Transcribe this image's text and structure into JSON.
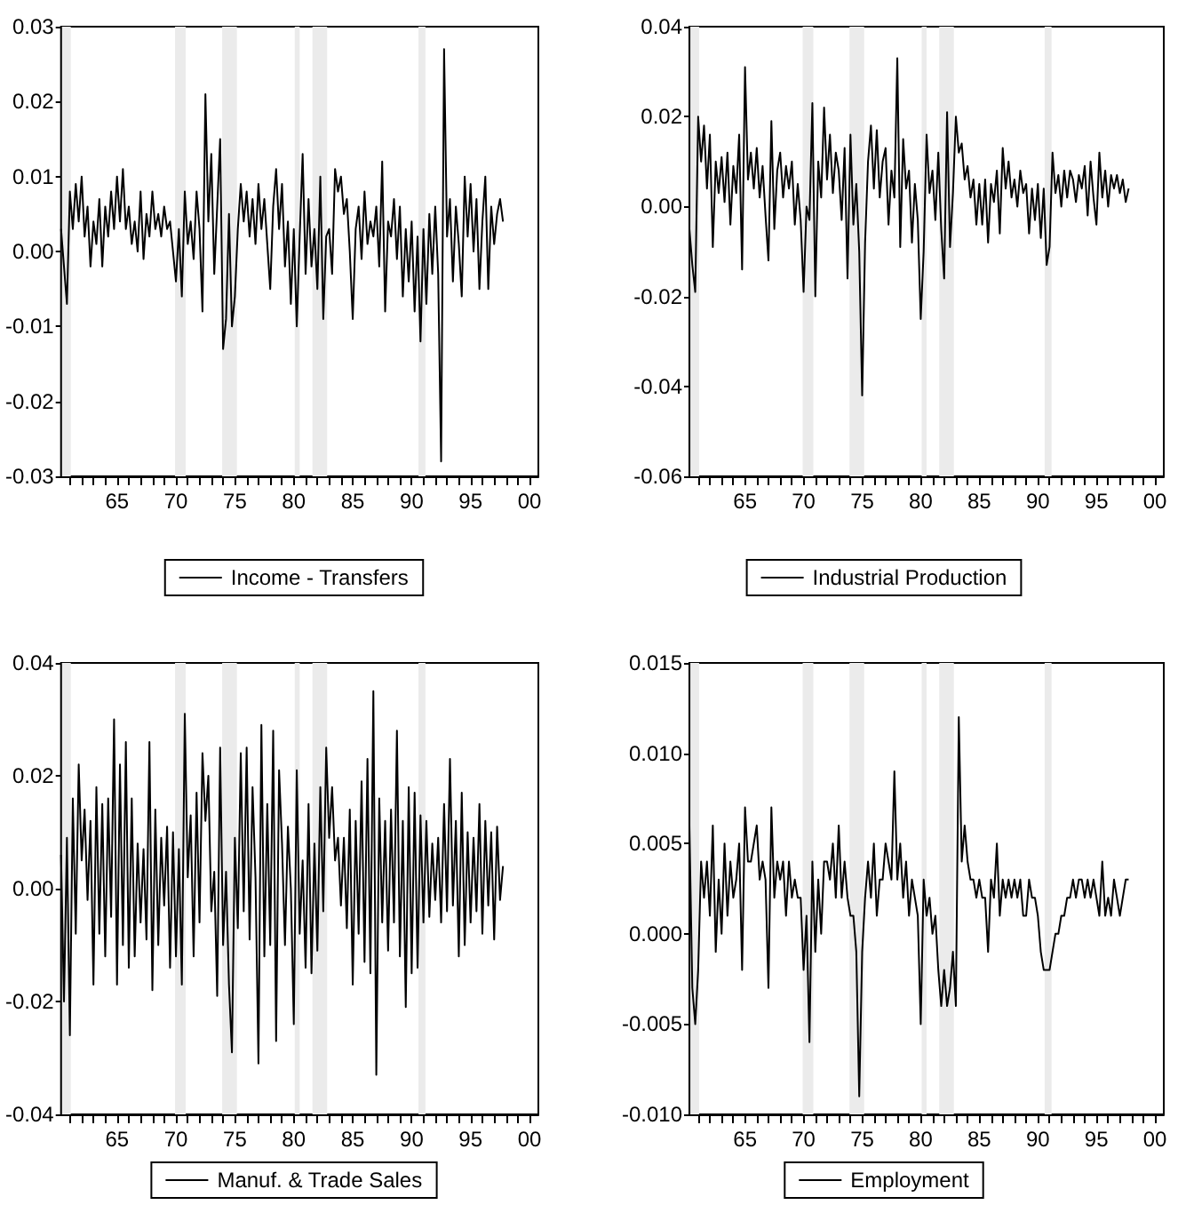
{
  "chart_data": [
    {
      "type": "line",
      "legend": "bottom",
      "xlim": [
        1960.25,
        2000.75
      ],
      "xticks": [
        {
          "value": 1961,
          "label": null
        },
        {
          "value": 1962,
          "label": null
        },
        {
          "value": 1963,
          "label": null
        },
        {
          "value": 1964,
          "label": null
        },
        {
          "value": 1965,
          "label": "65"
        },
        {
          "value": 1966,
          "label": null
        },
        {
          "value": 1967,
          "label": null
        },
        {
          "value": 1968,
          "label": null
        },
        {
          "value": 1969,
          "label": null
        },
        {
          "value": 1970,
          "label": "70"
        },
        {
          "value": 1971,
          "label": null
        },
        {
          "value": 1972,
          "label": null
        },
        {
          "value": 1973,
          "label": null
        },
        {
          "value": 1974,
          "label": null
        },
        {
          "value": 1975,
          "label": "75"
        },
        {
          "value": 1976,
          "label": null
        },
        {
          "value": 1977,
          "label": null
        },
        {
          "value": 1978,
          "label": null
        },
        {
          "value": 1979,
          "label": null
        },
        {
          "value": 1980,
          "label": "80"
        },
        {
          "value": 1981,
          "label": null
        },
        {
          "value": 1982,
          "label": null
        },
        {
          "value": 1983,
          "label": null
        },
        {
          "value": 1984,
          "label": null
        },
        {
          "value": 1985,
          "label": "85"
        },
        {
          "value": 1986,
          "label": null
        },
        {
          "value": 1987,
          "label": null
        },
        {
          "value": 1988,
          "label": null
        },
        {
          "value": 1989,
          "label": null
        },
        {
          "value": 1990,
          "label": "90"
        },
        {
          "value": 1991,
          "label": null
        },
        {
          "value": 1992,
          "label": null
        },
        {
          "value": 1993,
          "label": null
        },
        {
          "value": 1994,
          "label": null
        },
        {
          "value": 1995,
          "label": "95"
        },
        {
          "value": 1996,
          "label": null
        },
        {
          "value": 1997,
          "label": null
        },
        {
          "value": 1998,
          "label": null
        },
        {
          "value": 1999,
          "label": null
        },
        {
          "value": 2000,
          "label": "00"
        }
      ],
      "ylim": [
        -0.03,
        0.03
      ],
      "yticks": [
        {
          "value": -0.03,
          "label": "-0.03"
        },
        {
          "value": -0.02,
          "label": "-0.02"
        },
        {
          "value": -0.01,
          "label": "-0.01"
        },
        {
          "value": 0,
          "label": "0.00"
        },
        {
          "value": 0.01,
          "label": "0.01"
        },
        {
          "value": 0.02,
          "label": "0.02"
        },
        {
          "value": 0.03,
          "label": "0.03"
        }
      ],
      "bands": [
        {
          "axis": "x",
          "from": 1960.33,
          "to": 1961.08,
          "color": "#ebebeb"
        },
        {
          "axis": "x",
          "from": 1969.92,
          "to": 1970.83,
          "color": "#ebebeb"
        },
        {
          "axis": "x",
          "from": 1973.92,
          "to": 1975.17,
          "color": "#ebebeb"
        },
        {
          "axis": "x",
          "from": 1980.08,
          "to": 1980.5,
          "color": "#ebebeb"
        },
        {
          "axis": "x",
          "from": 1981.58,
          "to": 1982.83,
          "color": "#ebebeb"
        },
        {
          "axis": "x",
          "from": 1990.58,
          "to": 1991.17,
          "color": "#ebebeb"
        }
      ],
      "x": [
        1960.25,
        1960.5,
        1960.75,
        1961,
        1961.25,
        1961.5,
        1961.75,
        1962,
        1962.25,
        1962.5,
        1962.75,
        1963,
        1963.25,
        1963.5,
        1963.75,
        1964,
        1964.25,
        1964.5,
        1964.75,
        1965,
        1965.25,
        1965.5,
        1965.75,
        1966,
        1966.25,
        1966.5,
        1966.75,
        1967,
        1967.25,
        1967.5,
        1967.75,
        1968,
        1968.25,
        1968.5,
        1968.75,
        1969,
        1969.25,
        1969.5,
        1969.75,
        1970,
        1970.25,
        1970.5,
        1970.75,
        1971,
        1971.25,
        1971.5,
        1971.75,
        1972,
        1972.25,
        1972.5,
        1972.75,
        1973,
        1973.25,
        1973.5,
        1973.75,
        1974,
        1974.25,
        1974.5,
        1974.75,
        1975,
        1975.25,
        1975.5,
        1975.75,
        1976,
        1976.25,
        1976.5,
        1976.75,
        1977,
        1977.25,
        1977.5,
        1977.75,
        1978,
        1978.25,
        1978.5,
        1978.75,
        1979,
        1979.25,
        1979.5,
        1979.75,
        1980,
        1980.25,
        1980.5,
        1980.75,
        1981,
        1981.25,
        1981.5,
        1981.75,
        1982,
        1982.25,
        1982.5,
        1982.75,
        1983,
        1983.25,
        1983.5,
        1983.75,
        1984,
        1984.25,
        1984.5,
        1984.75,
        1985,
        1985.25,
        1985.5,
        1985.75,
        1986,
        1986.25,
        1986.5,
        1986.75,
        1987,
        1987.25,
        1987.5,
        1987.75,
        1988,
        1988.25,
        1988.5,
        1988.75,
        1989,
        1989.25,
        1989.5,
        1989.75,
        1990,
        1990.25,
        1990.5,
        1990.75,
        1991,
        1991.25,
        1991.5,
        1991.75,
        1992,
        1992.25,
        1992.5,
        1992.75,
        1993,
        1993.25,
        1993.5,
        1993.75,
        1994,
        1994.25,
        1994.5,
        1994.75,
        1995,
        1995.25,
        1995.5,
        1995.75,
        1996,
        1996.25,
        1996.5,
        1996.75,
        1997,
        1997.25,
        1997.5,
        1997.75
      ],
      "series": [
        {
          "name": "Income - Transfers",
          "color": "#000000",
          "values": [
            0.003,
            -0.002,
            -0.007,
            0.008,
            0.003,
            0.009,
            0.004,
            0.01,
            0.002,
            0.006,
            -0.002,
            0.004,
            0.001,
            0.007,
            -0.002,
            0.006,
            0.002,
            0.008,
            0.003,
            0.01,
            0.004,
            0.011,
            0.003,
            0.006,
            0.001,
            0.004,
            0.0,
            0.008,
            -0.001,
            0.005,
            0.002,
            0.008,
            0.003,
            0.005,
            0.002,
            0.006,
            0.003,
            0.004,
            0.0,
            -0.004,
            0.003,
            -0.006,
            0.008,
            0.001,
            0.004,
            -0.001,
            0.008,
            0.003,
            -0.008,
            0.021,
            0.004,
            0.013,
            -0.003,
            0.006,
            0.015,
            -0.013,
            -0.009,
            0.005,
            -0.01,
            -0.006,
            0.003,
            0.009,
            0.004,
            0.008,
            0.002,
            0.007,
            0.001,
            0.009,
            0.003,
            0.007,
            0.001,
            -0.005,
            0.006,
            0.011,
            0.003,
            0.009,
            -0.002,
            0.004,
            -0.007,
            0.003,
            -0.01,
            0.002,
            0.013,
            -0.003,
            0.007,
            -0.002,
            0.003,
            -0.005,
            0.01,
            -0.009,
            0.002,
            0.003,
            -0.003,
            0.011,
            0.008,
            0.01,
            0.005,
            0.007,
            0.0,
            -0.009,
            0.003,
            0.006,
            -0.001,
            0.008,
            0.001,
            0.004,
            0.002,
            0.006,
            -0.002,
            0.012,
            -0.008,
            0.004,
            0.002,
            0.007,
            -0.001,
            0.006,
            -0.006,
            0.003,
            -0.004,
            0.004,
            -0.008,
            0.002,
            -0.012,
            0.003,
            -0.007,
            0.005,
            -0.003,
            0.006,
            -0.003,
            -0.028,
            0.027,
            0.002,
            0.007,
            -0.004,
            0.006,
            0.001,
            -0.006,
            0.01,
            0.002,
            0.009,
            0.0,
            0.007,
            -0.005,
            0.004,
            0.01,
            -0.005,
            0.006,
            0.001,
            0.005,
            0.007,
            0.004
          ]
        }
      ]
    },
    {
      "type": "line",
      "legend": "bottom",
      "xlim": [
        1960.25,
        2000.75
      ],
      "xticks": [
        {
          "value": 1961,
          "label": null
        },
        {
          "value": 1962,
          "label": null
        },
        {
          "value": 1963,
          "label": null
        },
        {
          "value": 1964,
          "label": null
        },
        {
          "value": 1965,
          "label": "65"
        },
        {
          "value": 1966,
          "label": null
        },
        {
          "value": 1967,
          "label": null
        },
        {
          "value": 1968,
          "label": null
        },
        {
          "value": 1969,
          "label": null
        },
        {
          "value": 1970,
          "label": "70"
        },
        {
          "value": 1971,
          "label": null
        },
        {
          "value": 1972,
          "label": null
        },
        {
          "value": 1973,
          "label": null
        },
        {
          "value": 1974,
          "label": null
        },
        {
          "value": 1975,
          "label": "75"
        },
        {
          "value": 1976,
          "label": null
        },
        {
          "value": 1977,
          "label": null
        },
        {
          "value": 1978,
          "label": null
        },
        {
          "value": 1979,
          "label": null
        },
        {
          "value": 1980,
          "label": "80"
        },
        {
          "value": 1981,
          "label": null
        },
        {
          "value": 1982,
          "label": null
        },
        {
          "value": 1983,
          "label": null
        },
        {
          "value": 1984,
          "label": null
        },
        {
          "value": 1985,
          "label": "85"
        },
        {
          "value": 1986,
          "label": null
        },
        {
          "value": 1987,
          "label": null
        },
        {
          "value": 1988,
          "label": null
        },
        {
          "value": 1989,
          "label": null
        },
        {
          "value": 1990,
          "label": "90"
        },
        {
          "value": 1991,
          "label": null
        },
        {
          "value": 1992,
          "label": null
        },
        {
          "value": 1993,
          "label": null
        },
        {
          "value": 1994,
          "label": null
        },
        {
          "value": 1995,
          "label": "95"
        },
        {
          "value": 1996,
          "label": null
        },
        {
          "value": 1997,
          "label": null
        },
        {
          "value": 1998,
          "label": null
        },
        {
          "value": 1999,
          "label": null
        },
        {
          "value": 2000,
          "label": "00"
        }
      ],
      "ylim": [
        -0.06,
        0.04
      ],
      "yticks": [
        {
          "value": -0.06,
          "label": "-0.06"
        },
        {
          "value": -0.04,
          "label": "-0.04"
        },
        {
          "value": -0.02,
          "label": "-0.02"
        },
        {
          "value": 0,
          "label": "0.00"
        },
        {
          "value": 0.02,
          "label": "0.02"
        },
        {
          "value": 0.04,
          "label": "0.04"
        }
      ],
      "bands": [
        {
          "axis": "x",
          "from": 1960.33,
          "to": 1961.08,
          "color": "#ebebeb"
        },
        {
          "axis": "x",
          "from": 1969.92,
          "to": 1970.83,
          "color": "#ebebeb"
        },
        {
          "axis": "x",
          "from": 1973.92,
          "to": 1975.17,
          "color": "#ebebeb"
        },
        {
          "axis": "x",
          "from": 1980.08,
          "to": 1980.5,
          "color": "#ebebeb"
        },
        {
          "axis": "x",
          "from": 1981.58,
          "to": 1982.83,
          "color": "#ebebeb"
        },
        {
          "axis": "x",
          "from": 1990.58,
          "to": 1991.17,
          "color": "#ebebeb"
        }
      ],
      "x": [
        1960.25,
        1960.5,
        1960.75,
        1961,
        1961.25,
        1961.5,
        1961.75,
        1962,
        1962.25,
        1962.5,
        1962.75,
        1963,
        1963.25,
        1963.5,
        1963.75,
        1964,
        1964.25,
        1964.5,
        1964.75,
        1965,
        1965.25,
        1965.5,
        1965.75,
        1966,
        1966.25,
        1966.5,
        1966.75,
        1967,
        1967.25,
        1967.5,
        1967.75,
        1968,
        1968.25,
        1968.5,
        1968.75,
        1969,
        1969.25,
        1969.5,
        1969.75,
        1970,
        1970.25,
        1970.5,
        1970.75,
        1971,
        1971.25,
        1971.5,
        1971.75,
        1972,
        1972.25,
        1972.5,
        1972.75,
        1973,
        1973.25,
        1973.5,
        1973.75,
        1974,
        1974.25,
        1974.5,
        1974.75,
        1975,
        1975.25,
        1975.5,
        1975.75,
        1976,
        1976.25,
        1976.5,
        1976.75,
        1977,
        1977.25,
        1977.5,
        1977.75,
        1978,
        1978.25,
        1978.5,
        1978.75,
        1979,
        1979.25,
        1979.5,
        1979.75,
        1980,
        1980.25,
        1980.5,
        1980.75,
        1981,
        1981.25,
        1981.5,
        1981.75,
        1982,
        1982.25,
        1982.5,
        1982.75,
        1983,
        1983.25,
        1983.5,
        1983.75,
        1984,
        1984.25,
        1984.5,
        1984.75,
        1985,
        1985.25,
        1985.5,
        1985.75,
        1986,
        1986.25,
        1986.5,
        1986.75,
        1987,
        1987.25,
        1987.5,
        1987.75,
        1988,
        1988.25,
        1988.5,
        1988.75,
        1989,
        1989.25,
        1989.5,
        1989.75,
        1990,
        1990.25,
        1990.5,
        1990.75,
        1991,
        1991.25,
        1991.5,
        1991.75,
        1992,
        1992.25,
        1992.5,
        1992.75,
        1993,
        1993.25,
        1993.5,
        1993.75,
        1994,
        1994.25,
        1994.5,
        1994.75,
        1995,
        1995.25,
        1995.5,
        1995.75,
        1996,
        1996.25,
        1996.5,
        1996.75,
        1997,
        1997.25,
        1997.5,
        1997.75
      ],
      "series": [
        {
          "name": "Industrial Production",
          "color": "#000000",
          "values": [
            -0.005,
            -0.013,
            -0.019,
            0.02,
            0.01,
            0.018,
            0.004,
            0.016,
            -0.009,
            0.01,
            0.003,
            0.011,
            0.001,
            0.012,
            -0.004,
            0.009,
            0.003,
            0.016,
            -0.014,
            0.031,
            0.006,
            0.012,
            0.004,
            0.013,
            0.002,
            0.009,
            -0.002,
            -0.012,
            0.019,
            -0.005,
            0.008,
            0.012,
            0.002,
            0.009,
            0.004,
            0.01,
            -0.004,
            0.005,
            -0.003,
            -0.019,
            0.0,
            -0.003,
            0.023,
            -0.02,
            0.01,
            0.002,
            0.022,
            0.006,
            0.016,
            0.003,
            0.012,
            0.008,
            -0.003,
            0.013,
            -0.016,
            0.016,
            -0.004,
            0.005,
            -0.01,
            -0.042,
            -0.008,
            0.01,
            0.018,
            0.004,
            0.017,
            0.002,
            0.01,
            0.013,
            -0.004,
            0.008,
            0.002,
            0.033,
            -0.009,
            0.015,
            0.004,
            0.008,
            -0.008,
            0.005,
            -0.003,
            -0.025,
            -0.01,
            0.016,
            0.003,
            0.008,
            -0.003,
            0.012,
            -0.005,
            -0.016,
            0.021,
            -0.009,
            0.003,
            0.02,
            0.012,
            0.014,
            0.006,
            0.009,
            0.002,
            0.006,
            -0.004,
            0.005,
            -0.004,
            0.006,
            -0.008,
            0.005,
            0.001,
            0.008,
            -0.006,
            0.013,
            0.004,
            0.01,
            0.002,
            0.006,
            0.0,
            0.008,
            0.003,
            0.005,
            -0.006,
            0.004,
            -0.003,
            0.005,
            -0.007,
            0.004,
            -0.013,
            -0.009,
            0.012,
            0.003,
            0.007,
            0.0,
            0.008,
            0.002,
            0.008,
            0.006,
            0.001,
            0.007,
            0.004,
            0.009,
            -0.002,
            0.01,
            0.002,
            -0.004,
            0.012,
            0.002,
            0.008,
            0.0,
            0.007,
            0.004,
            0.007,
            0.003,
            0.006,
            0.001,
            0.004
          ]
        }
      ]
    },
    {
      "type": "line",
      "legend": "bottom",
      "xlim": [
        1960.25,
        2000.75
      ],
      "xticks": [
        {
          "value": 1961,
          "label": null
        },
        {
          "value": 1962,
          "label": null
        },
        {
          "value": 1963,
          "label": null
        },
        {
          "value": 1964,
          "label": null
        },
        {
          "value": 1965,
          "label": "65"
        },
        {
          "value": 1966,
          "label": null
        },
        {
          "value": 1967,
          "label": null
        },
        {
          "value": 1968,
          "label": null
        },
        {
          "value": 1969,
          "label": null
        },
        {
          "value": 1970,
          "label": "70"
        },
        {
          "value": 1971,
          "label": null
        },
        {
          "value": 1972,
          "label": null
        },
        {
          "value": 1973,
          "label": null
        },
        {
          "value": 1974,
          "label": null
        },
        {
          "value": 1975,
          "label": "75"
        },
        {
          "value": 1976,
          "label": null
        },
        {
          "value": 1977,
          "label": null
        },
        {
          "value": 1978,
          "label": null
        },
        {
          "value": 1979,
          "label": null
        },
        {
          "value": 1980,
          "label": "80"
        },
        {
          "value": 1981,
          "label": null
        },
        {
          "value": 1982,
          "label": null
        },
        {
          "value": 1983,
          "label": null
        },
        {
          "value": 1984,
          "label": null
        },
        {
          "value": 1985,
          "label": "85"
        },
        {
          "value": 1986,
          "label": null
        },
        {
          "value": 1987,
          "label": null
        },
        {
          "value": 1988,
          "label": null
        },
        {
          "value": 1989,
          "label": null
        },
        {
          "value": 1990,
          "label": "90"
        },
        {
          "value": 1991,
          "label": null
        },
        {
          "value": 1992,
          "label": null
        },
        {
          "value": 1993,
          "label": null
        },
        {
          "value": 1994,
          "label": null
        },
        {
          "value": 1995,
          "label": "95"
        },
        {
          "value": 1996,
          "label": null
        },
        {
          "value": 1997,
          "label": null
        },
        {
          "value": 1998,
          "label": null
        },
        {
          "value": 1999,
          "label": null
        },
        {
          "value": 2000,
          "label": "00"
        }
      ],
      "ylim": [
        -0.04,
        0.04
      ],
      "yticks": [
        {
          "value": -0.04,
          "label": "-0.04"
        },
        {
          "value": -0.02,
          "label": "-0.02"
        },
        {
          "value": 0,
          "label": "0.00"
        },
        {
          "value": 0.02,
          "label": "0.02"
        },
        {
          "value": 0.04,
          "label": "0.04"
        }
      ],
      "bands": [
        {
          "axis": "x",
          "from": 1960.33,
          "to": 1961.08,
          "color": "#ebebeb"
        },
        {
          "axis": "x",
          "from": 1969.92,
          "to": 1970.83,
          "color": "#ebebeb"
        },
        {
          "axis": "x",
          "from": 1973.92,
          "to": 1975.17,
          "color": "#ebebeb"
        },
        {
          "axis": "x",
          "from": 1980.08,
          "to": 1980.5,
          "color": "#ebebeb"
        },
        {
          "axis": "x",
          "from": 1981.58,
          "to": 1982.83,
          "color": "#ebebeb"
        },
        {
          "axis": "x",
          "from": 1990.58,
          "to": 1991.17,
          "color": "#ebebeb"
        }
      ],
      "x": [
        1960.25,
        1960.5,
        1960.75,
        1961,
        1961.25,
        1961.5,
        1961.75,
        1962,
        1962.25,
        1962.5,
        1962.75,
        1963,
        1963.25,
        1963.5,
        1963.75,
        1964,
        1964.25,
        1964.5,
        1964.75,
        1965,
        1965.25,
        1965.5,
        1965.75,
        1966,
        1966.25,
        1966.5,
        1966.75,
        1967,
        1967.25,
        1967.5,
        1967.75,
        1968,
        1968.25,
        1968.5,
        1968.75,
        1969,
        1969.25,
        1969.5,
        1969.75,
        1970,
        1970.25,
        1970.5,
        1970.75,
        1971,
        1971.25,
        1971.5,
        1971.75,
        1972,
        1972.25,
        1972.5,
        1972.75,
        1973,
        1973.25,
        1973.5,
        1973.75,
        1974,
        1974.25,
        1974.5,
        1974.75,
        1975,
        1975.25,
        1975.5,
        1975.75,
        1976,
        1976.25,
        1976.5,
        1976.75,
        1977,
        1977.25,
        1977.5,
        1977.75,
        1978,
        1978.25,
        1978.5,
        1978.75,
        1979,
        1979.25,
        1979.5,
        1979.75,
        1980,
        1980.25,
        1980.5,
        1980.75,
        1981,
        1981.25,
        1981.5,
        1981.75,
        1982,
        1982.25,
        1982.5,
        1982.75,
        1983,
        1983.25,
        1983.5,
        1983.75,
        1984,
        1984.25,
        1984.5,
        1984.75,
        1985,
        1985.25,
        1985.5,
        1985.75,
        1986,
        1986.25,
        1986.5,
        1986.75,
        1987,
        1987.25,
        1987.5,
        1987.75,
        1988,
        1988.25,
        1988.5,
        1988.75,
        1989,
        1989.25,
        1989.5,
        1989.75,
        1990,
        1990.25,
        1990.5,
        1990.75,
        1991,
        1991.25,
        1991.5,
        1991.75,
        1992,
        1992.25,
        1992.5,
        1992.75,
        1993,
        1993.25,
        1993.5,
        1993.75,
        1994,
        1994.25,
        1994.5,
        1994.75,
        1995,
        1995.25,
        1995.5,
        1995.75,
        1996,
        1996.25,
        1996.5,
        1996.75,
        1997,
        1997.25,
        1997.5,
        1997.75
      ],
      "series": [
        {
          "name": "Manuf. & Trade Sales",
          "color": "#000000",
          "values": [
            0.006,
            -0.02,
            0.009,
            -0.026,
            0.016,
            -0.008,
            0.022,
            0.005,
            0.014,
            -0.002,
            0.012,
            -0.017,
            0.018,
            -0.008,
            0.015,
            -0.012,
            0.016,
            -0.005,
            0.03,
            -0.017,
            0.022,
            -0.01,
            0.026,
            -0.014,
            0.016,
            -0.012,
            0.008,
            -0.006,
            0.007,
            -0.009,
            0.026,
            -0.018,
            0.014,
            -0.01,
            0.009,
            -0.003,
            0.011,
            -0.014,
            0.01,
            -0.012,
            0.007,
            -0.017,
            0.031,
            0.002,
            0.013,
            -0.012,
            0.017,
            -0.006,
            0.024,
            0.012,
            0.02,
            -0.004,
            0.003,
            -0.019,
            0.025,
            -0.01,
            0.003,
            -0.017,
            -0.029,
            0.009,
            -0.007,
            0.024,
            -0.004,
            0.025,
            -0.009,
            0.018,
            0.002,
            -0.031,
            0.029,
            -0.012,
            0.015,
            -0.01,
            0.028,
            -0.027,
            0.021,
            0.008,
            -0.01,
            0.011,
            0.0,
            -0.024,
            0.021,
            -0.008,
            0.005,
            -0.014,
            0.015,
            -0.015,
            0.008,
            -0.011,
            0.018,
            -0.004,
            0.025,
            0.009,
            0.018,
            0.005,
            0.009,
            -0.003,
            0.009,
            -0.007,
            0.014,
            -0.017,
            0.012,
            -0.008,
            0.019,
            -0.013,
            0.023,
            -0.015,
            0.035,
            -0.033,
            0.016,
            -0.006,
            0.012,
            -0.011,
            0.014,
            -0.006,
            0.028,
            -0.012,
            0.012,
            -0.021,
            0.018,
            -0.015,
            0.017,
            -0.014,
            0.013,
            -0.006,
            0.012,
            -0.005,
            0.008,
            -0.002,
            0.009,
            -0.006,
            0.015,
            -0.004,
            0.023,
            -0.003,
            0.012,
            -0.012,
            0.017,
            -0.01,
            0.01,
            -0.006,
            0.009,
            -0.004,
            0.015,
            -0.008,
            0.012,
            -0.003,
            0.01,
            -0.009,
            0.011,
            -0.002,
            0.004
          ]
        }
      ]
    },
    {
      "type": "line",
      "legend": "bottom",
      "xlim": [
        1960.25,
        2000.75
      ],
      "xticks": [
        {
          "value": 1961,
          "label": null
        },
        {
          "value": 1962,
          "label": null
        },
        {
          "value": 1963,
          "label": null
        },
        {
          "value": 1964,
          "label": null
        },
        {
          "value": 1965,
          "label": "65"
        },
        {
          "value": 1966,
          "label": null
        },
        {
          "value": 1967,
          "label": null
        },
        {
          "value": 1968,
          "label": null
        },
        {
          "value": 1969,
          "label": null
        },
        {
          "value": 1970,
          "label": "70"
        },
        {
          "value": 1971,
          "label": null
        },
        {
          "value": 1972,
          "label": null
        },
        {
          "value": 1973,
          "label": null
        },
        {
          "value": 1974,
          "label": null
        },
        {
          "value": 1975,
          "label": "75"
        },
        {
          "value": 1976,
          "label": null
        },
        {
          "value": 1977,
          "label": null
        },
        {
          "value": 1978,
          "label": null
        },
        {
          "value": 1979,
          "label": null
        },
        {
          "value": 1980,
          "label": "80"
        },
        {
          "value": 1981,
          "label": null
        },
        {
          "value": 1982,
          "label": null
        },
        {
          "value": 1983,
          "label": null
        },
        {
          "value": 1984,
          "label": null
        },
        {
          "value": 1985,
          "label": "85"
        },
        {
          "value": 1986,
          "label": null
        },
        {
          "value": 1987,
          "label": null
        },
        {
          "value": 1988,
          "label": null
        },
        {
          "value": 1989,
          "label": null
        },
        {
          "value": 1990,
          "label": "90"
        },
        {
          "value": 1991,
          "label": null
        },
        {
          "value": 1992,
          "label": null
        },
        {
          "value": 1993,
          "label": null
        },
        {
          "value": 1994,
          "label": null
        },
        {
          "value": 1995,
          "label": "95"
        },
        {
          "value": 1996,
          "label": null
        },
        {
          "value": 1997,
          "label": null
        },
        {
          "value": 1998,
          "label": null
        },
        {
          "value": 1999,
          "label": null
        },
        {
          "value": 2000,
          "label": "00"
        }
      ],
      "ylim": [
        -0.01,
        0.015
      ],
      "yticks": [
        {
          "value": -0.01,
          "label": "-0.010"
        },
        {
          "value": -0.005,
          "label": "-0.005"
        },
        {
          "value": 0,
          "label": "0.000"
        },
        {
          "value": 0.005,
          "label": "0.005"
        },
        {
          "value": 0.01,
          "label": "0.010"
        },
        {
          "value": 0.015,
          "label": "0.015"
        }
      ],
      "bands": [
        {
          "axis": "x",
          "from": 1960.33,
          "to": 1961.08,
          "color": "#ebebeb"
        },
        {
          "axis": "x",
          "from": 1969.92,
          "to": 1970.83,
          "color": "#ebebeb"
        },
        {
          "axis": "x",
          "from": 1973.92,
          "to": 1975.17,
          "color": "#ebebeb"
        },
        {
          "axis": "x",
          "from": 1980.08,
          "to": 1980.5,
          "color": "#ebebeb"
        },
        {
          "axis": "x",
          "from": 1981.58,
          "to": 1982.83,
          "color": "#ebebeb"
        },
        {
          "axis": "x",
          "from": 1990.58,
          "to": 1991.17,
          "color": "#ebebeb"
        }
      ],
      "x": [
        1960.25,
        1960.5,
        1960.75,
        1961,
        1961.25,
        1961.5,
        1961.75,
        1962,
        1962.25,
        1962.5,
        1962.75,
        1963,
        1963.25,
        1963.5,
        1963.75,
        1964,
        1964.25,
        1964.5,
        1964.75,
        1965,
        1965.25,
        1965.5,
        1965.75,
        1966,
        1966.25,
        1966.5,
        1966.75,
        1967,
        1967.25,
        1967.5,
        1967.75,
        1968,
        1968.25,
        1968.5,
        1968.75,
        1969,
        1969.25,
        1969.5,
        1969.75,
        1970,
        1970.25,
        1970.5,
        1970.75,
        1971,
        1971.25,
        1971.5,
        1971.75,
        1972,
        1972.25,
        1972.5,
        1972.75,
        1973,
        1973.25,
        1973.5,
        1973.75,
        1974,
        1974.25,
        1974.5,
        1974.75,
        1975,
        1975.25,
        1975.5,
        1975.75,
        1976,
        1976.25,
        1976.5,
        1976.75,
        1977,
        1977.25,
        1977.5,
        1977.75,
        1978,
        1978.25,
        1978.5,
        1978.75,
        1979,
        1979.25,
        1979.5,
        1979.75,
        1980,
        1980.25,
        1980.5,
        1980.75,
        1981,
        1981.25,
        1981.5,
        1981.75,
        1982,
        1982.25,
        1982.5,
        1982.75,
        1983,
        1983.25,
        1983.5,
        1983.75,
        1984,
        1984.25,
        1984.5,
        1984.75,
        1985,
        1985.25,
        1985.5,
        1985.75,
        1986,
        1986.25,
        1986.5,
        1986.75,
        1987,
        1987.25,
        1987.5,
        1987.75,
        1988,
        1988.25,
        1988.5,
        1988.75,
        1989,
        1989.25,
        1989.5,
        1989.75,
        1990,
        1990.25,
        1990.5,
        1990.75,
        1991,
        1991.25,
        1991.5,
        1991.75,
        1992,
        1992.25,
        1992.5,
        1992.75,
        1993,
        1993.25,
        1993.5,
        1993.75,
        1994,
        1994.25,
        1994.5,
        1994.75,
        1995,
        1995.25,
        1995.5,
        1995.75,
        1996,
        1996.25,
        1996.5,
        1996.75,
        1997,
        1997.25,
        1997.5,
        1997.75
      ],
      "series": [
        {
          "name": "Employment",
          "color": "#000000",
          "values": [
            0.006,
            -0.003,
            -0.005,
            -0.002,
            0.004,
            0.002,
            0.004,
            0.001,
            0.006,
            -0.001,
            0.003,
            0.0,
            0.005,
            0.001,
            0.004,
            0.002,
            0.003,
            0.005,
            -0.002,
            0.007,
            0.004,
            0.004,
            0.005,
            0.006,
            0.003,
            0.004,
            0.003,
            -0.003,
            0.007,
            0.002,
            0.004,
            0.003,
            0.004,
            0.001,
            0.004,
            0.002,
            0.003,
            0.002,
            0.002,
            -0.002,
            0.001,
            -0.006,
            0.004,
            -0.001,
            0.003,
            0.0,
            0.004,
            0.004,
            0.003,
            0.005,
            0.002,
            0.006,
            0.002,
            0.004,
            0.002,
            0.001,
            0.001,
            -0.001,
            -0.009,
            -0.001,
            0.002,
            0.004,
            0.002,
            0.005,
            0.001,
            0.003,
            0.003,
            0.005,
            0.004,
            0.003,
            0.009,
            0.003,
            0.005,
            0.002,
            0.004,
            0.001,
            0.003,
            0.002,
            0.001,
            -0.005,
            0.003,
            0.001,
            0.002,
            0.0,
            0.001,
            -0.002,
            -0.004,
            -0.002,
            -0.004,
            -0.003,
            -0.001,
            -0.004,
            0.012,
            0.004,
            0.006,
            0.004,
            0.003,
            0.003,
            0.002,
            0.003,
            0.002,
            0.002,
            -0.001,
            0.003,
            0.002,
            0.005,
            0.001,
            0.003,
            0.002,
            0.003,
            0.002,
            0.003,
            0.002,
            0.003,
            0.001,
            0.001,
            0.003,
            0.002,
            0.002,
            0.001,
            -0.001,
            -0.002,
            -0.002,
            -0.002,
            -0.001,
            0.0,
            0.0,
            0.001,
            0.001,
            0.002,
            0.002,
            0.003,
            0.002,
            0.003,
            0.003,
            0.002,
            0.003,
            0.002,
            0.003,
            0.002,
            0.001,
            0.004,
            0.001,
            0.002,
            0.001,
            0.003,
            0.002,
            0.001,
            0.002,
            0.003,
            0.003
          ]
        }
      ]
    }
  ]
}
